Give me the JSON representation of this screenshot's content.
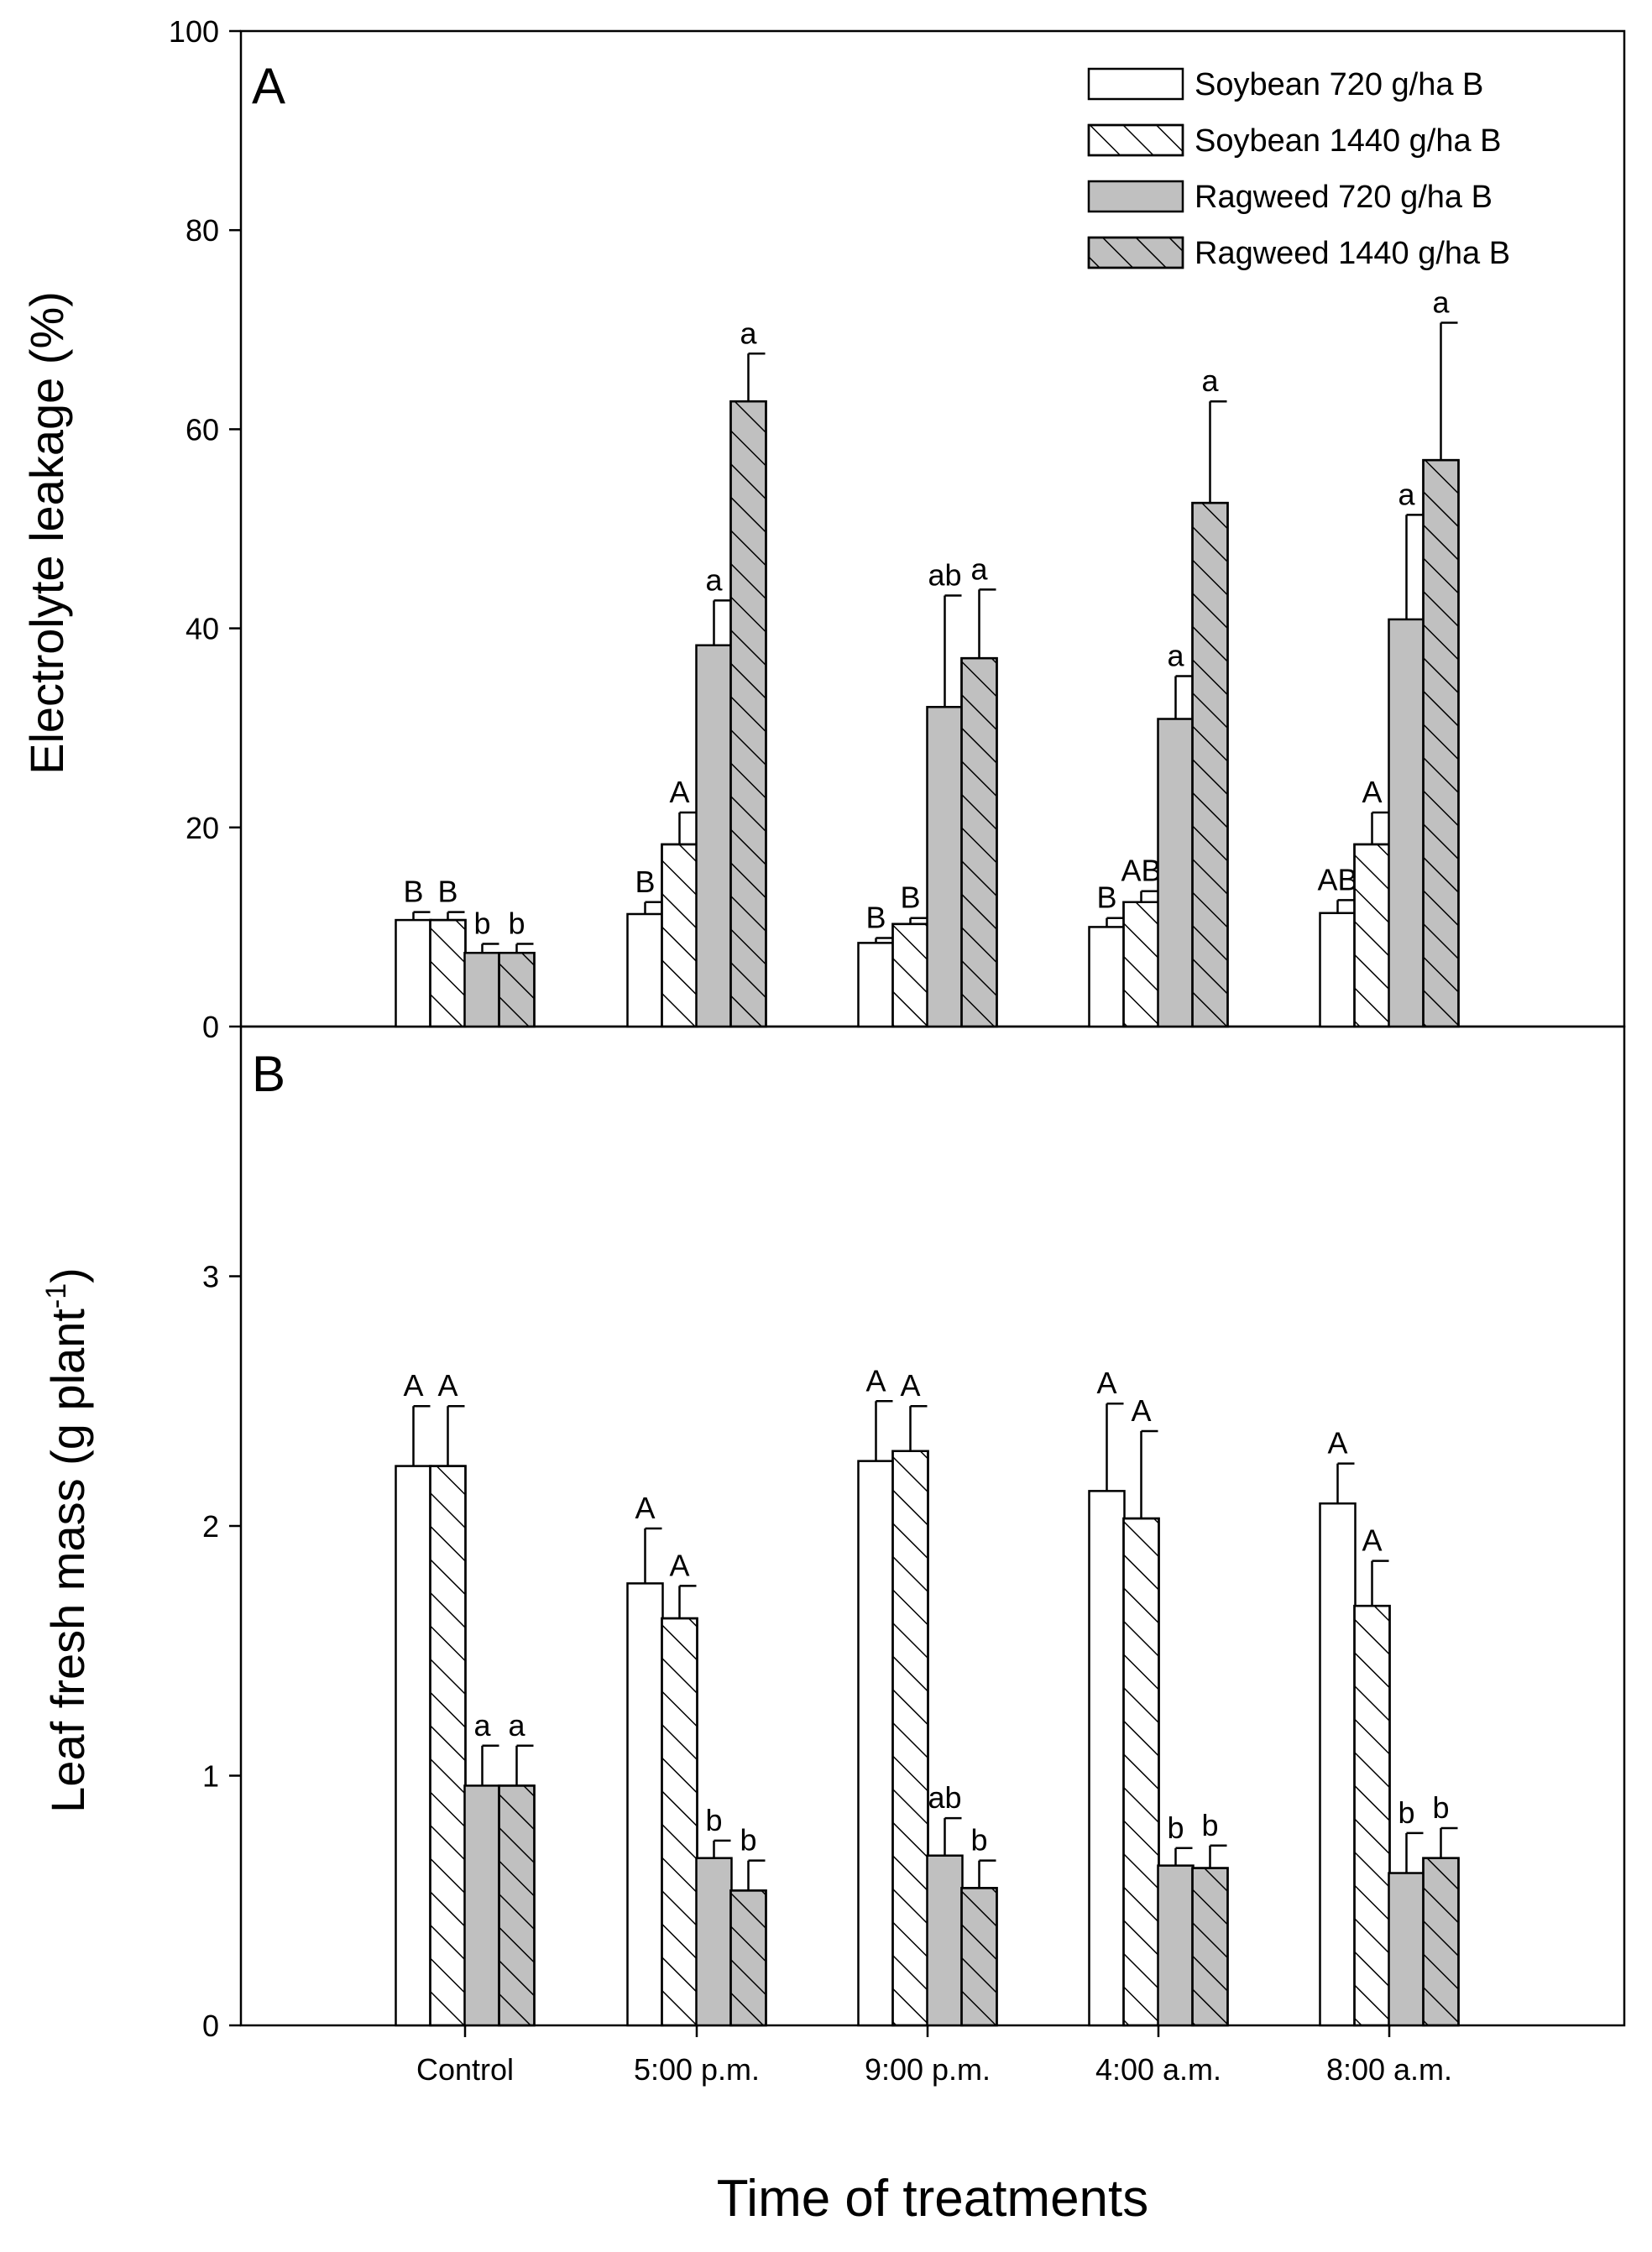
{
  "colors": {
    "open": "#ffffff",
    "gray": "#c0c0c0",
    "ink": "#000000"
  },
  "xlabel": "Time of treatments",
  "legend": [
    {
      "label": "Soybean 720 g/ha B",
      "fill": "#ffffff",
      "hatch": false
    },
    {
      "label": "Soybean 1440 g/ha B",
      "fill": "#ffffff",
      "hatch": true
    },
    {
      "label": "Ragweed 720 g/ha B",
      "fill": "#c0c0c0",
      "hatch": false
    },
    {
      "label": "Ragweed 1440 g/ha B",
      "fill": "#c0c0c0",
      "hatch": true
    }
  ],
  "chart_data": [
    {
      "type": "bar",
      "panel": "A",
      "ylabel": "Electrolyte leakage (%)",
      "ylim": [
        0,
        100
      ],
      "yticks": [
        0,
        20,
        40,
        60,
        80,
        100
      ],
      "categories": [
        "Control",
        "5:00 p.m.",
        "9:00 p.m.",
        "4:00 a.m.",
        "8:00 a.m."
      ],
      "series": [
        {
          "name": "Soybean 720 g/ha B",
          "values": [
            10.7,
            11.3,
            8.4,
            10.0,
            11.4
          ],
          "errors": [
            0.8,
            1.2,
            0.5,
            0.9,
            1.3
          ],
          "labels": [
            "B",
            "B",
            "B",
            "B",
            "AB"
          ]
        },
        {
          "name": "Soybean 1440 g/ha B",
          "values": [
            10.7,
            18.3,
            10.3,
            12.5,
            18.3
          ],
          "errors": [
            0.8,
            3.2,
            0.6,
            1.1,
            3.2
          ],
          "labels": [
            "B",
            "A",
            "B",
            "AB",
            "A"
          ]
        },
        {
          "name": "Ragweed 720 g/ha B",
          "values": [
            7.4,
            38.3,
            32.1,
            30.9,
            40.9
          ],
          "errors": [
            0.9,
            4.5,
            11.2,
            4.3,
            10.5
          ],
          "labels": [
            "b",
            "a",
            "ab",
            "a",
            "a"
          ]
        },
        {
          "name": "Ragweed 1440 g/ha B",
          "values": [
            7.4,
            62.8,
            37.0,
            52.6,
            56.9
          ],
          "errors": [
            0.9,
            4.8,
            6.9,
            10.2,
            13.8
          ],
          "labels": [
            "b",
            "a",
            "a",
            "a",
            "a"
          ]
        }
      ]
    },
    {
      "type": "bar",
      "panel": "B",
      "ylabel_main": "Leaf fresh mass (g plant",
      "ylabel_sup": "-1",
      "ylabel_end": ")",
      "ylim": [
        0,
        4
      ],
      "yticks": [
        0,
        1,
        2,
        3
      ],
      "categories": [
        "Control",
        "5:00 p.m.",
        "9:00 p.m.",
        "4:00 a.m.",
        "8:00 a.m."
      ],
      "series": [
        {
          "name": "Soybean 720 g/ha B",
          "values": [
            2.24,
            1.77,
            2.26,
            2.14,
            2.09
          ],
          "errors": [
            0.24,
            0.22,
            0.24,
            0.35,
            0.16
          ],
          "labels": [
            "A",
            "A",
            "A",
            "A",
            "A"
          ]
        },
        {
          "name": "Soybean 1440 g/ha B",
          "values": [
            2.24,
            1.63,
            2.3,
            2.03,
            1.68
          ],
          "errors": [
            0.24,
            0.13,
            0.18,
            0.35,
            0.18
          ],
          "labels": [
            "A",
            "A",
            "A",
            "A",
            "A"
          ]
        },
        {
          "name": "Ragweed 720 g/ha B",
          "values": [
            0.96,
            0.67,
            0.68,
            0.64,
            0.61
          ],
          "errors": [
            0.16,
            0.07,
            0.15,
            0.07,
            0.16
          ],
          "labels": [
            "a",
            "b",
            "ab",
            "b",
            "b"
          ]
        },
        {
          "name": "Ragweed 1440 g/ha B",
          "values": [
            0.96,
            0.54,
            0.55,
            0.63,
            0.67
          ],
          "errors": [
            0.16,
            0.12,
            0.11,
            0.09,
            0.12
          ],
          "labels": [
            "a",
            "b",
            "b",
            "b",
            "b"
          ]
        }
      ]
    }
  ]
}
